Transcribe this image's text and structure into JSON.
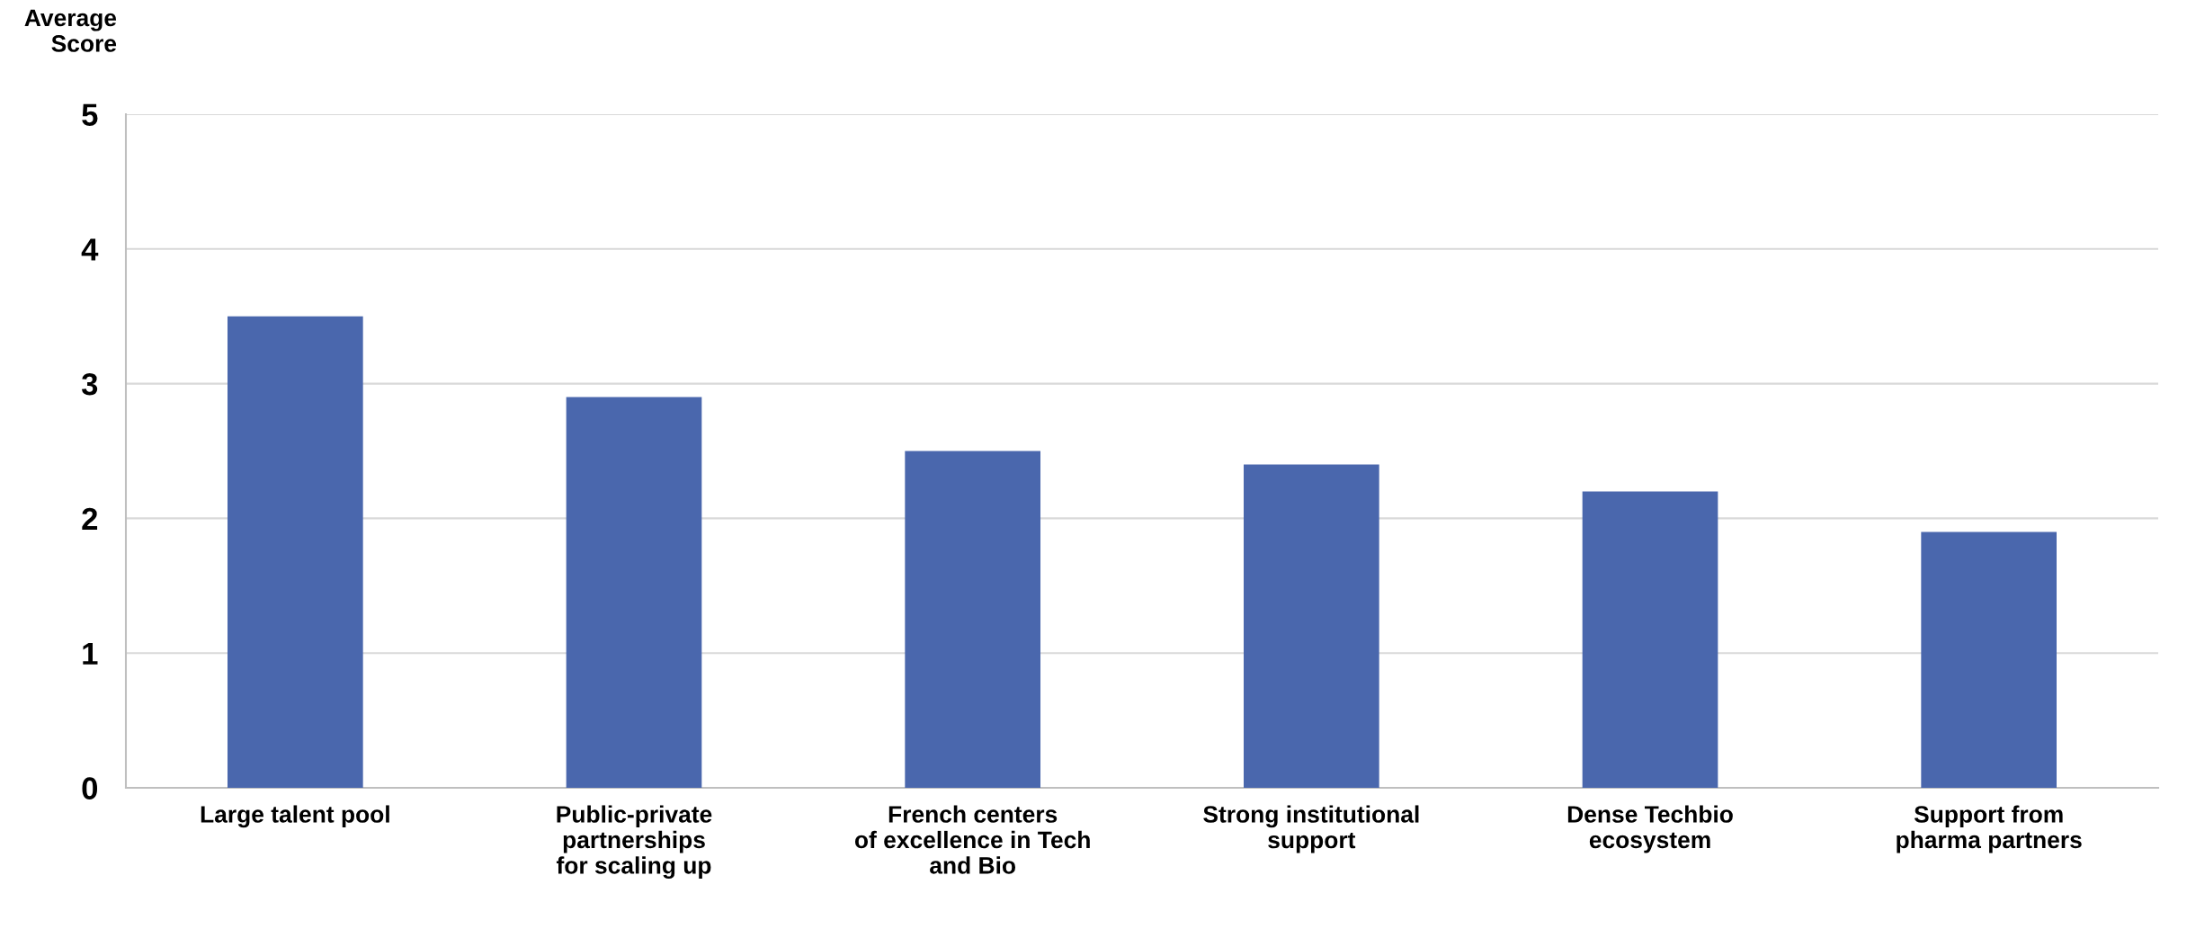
{
  "chart_data": {
    "type": "bar",
    "ylabel": "Average\nScore",
    "categories": [
      "Large talent pool",
      "Public-private\npartnerships\nfor scaling up",
      "French centers\nof excellence in Tech\nand Bio",
      "Strong institutional\nsupport",
      "Dense Techbio\necosystem",
      "Support from\npharma partners"
    ],
    "values": [
      3.5,
      2.9,
      2.5,
      2.4,
      2.2,
      1.9
    ],
    "color": "#4a67ad",
    "ylim": [
      0,
      5
    ],
    "yticks": [
      0,
      1,
      2,
      3,
      4,
      5
    ],
    "grid": "y",
    "legend": false
  }
}
